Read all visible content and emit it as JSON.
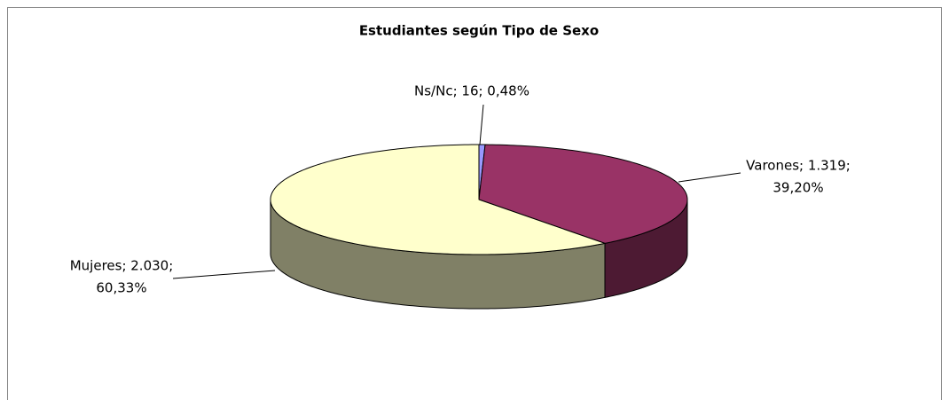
{
  "chart_data": {
    "type": "pie3d",
    "title": "Estudiantes según Tipo de Sexo",
    "values": [
      16,
      1319,
      2030
    ],
    "value_labels": [
      [
        "Ns/Nc; 16; 0,48%"
      ],
      [
        "Varones; 1.319;",
        "39,20%"
      ],
      [
        "Mujeres; 2.030;",
        "60,33%"
      ]
    ],
    "colors": [
      "#9999ff",
      "#993366",
      "#ffffcc"
    ],
    "side_colors": [
      "#4d4d80",
      "#4d1a33",
      "#808066"
    ]
  }
}
